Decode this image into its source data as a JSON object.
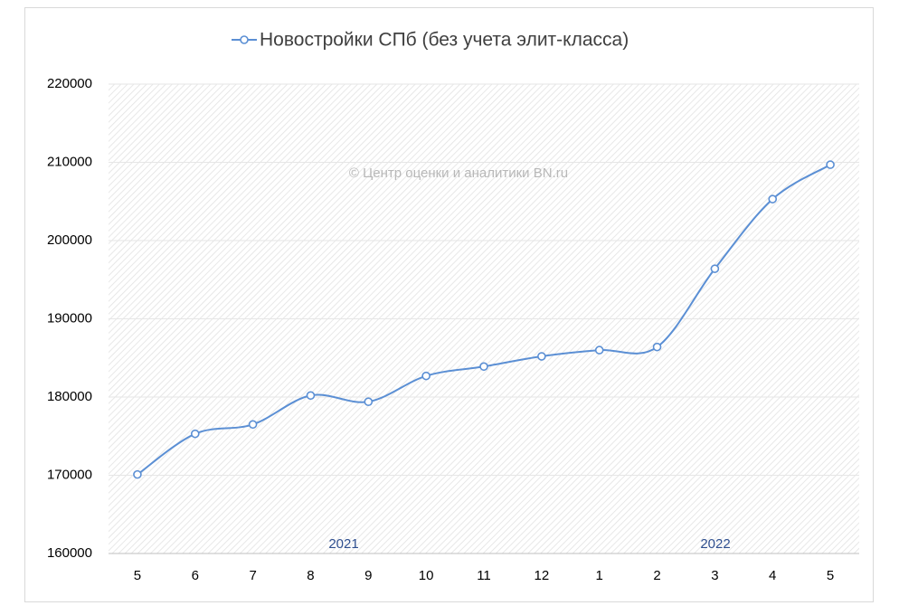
{
  "chart_data": {
    "type": "line",
    "categories": [
      "5",
      "6",
      "7",
      "8",
      "9",
      "10",
      "11",
      "12",
      "1",
      "2",
      "3",
      "4",
      "5"
    ],
    "series": [
      {
        "name": "Новостройки СПб (без учета элит-класса)",
        "color": "#5b8fd4",
        "values": [
          170100,
          175300,
          176500,
          180200,
          179400,
          182700,
          183900,
          185200,
          186000,
          186400,
          196400,
          205300,
          209700
        ]
      }
    ],
    "ylim": [
      160000,
      220000
    ],
    "yticks": [
      160000,
      170000,
      180000,
      190000,
      200000,
      210000,
      220000
    ],
    "grid": true,
    "legend": "top",
    "annotations": [
      "© Центр оценки и аналитики BN.ru",
      "2021",
      "2022"
    ]
  }
}
